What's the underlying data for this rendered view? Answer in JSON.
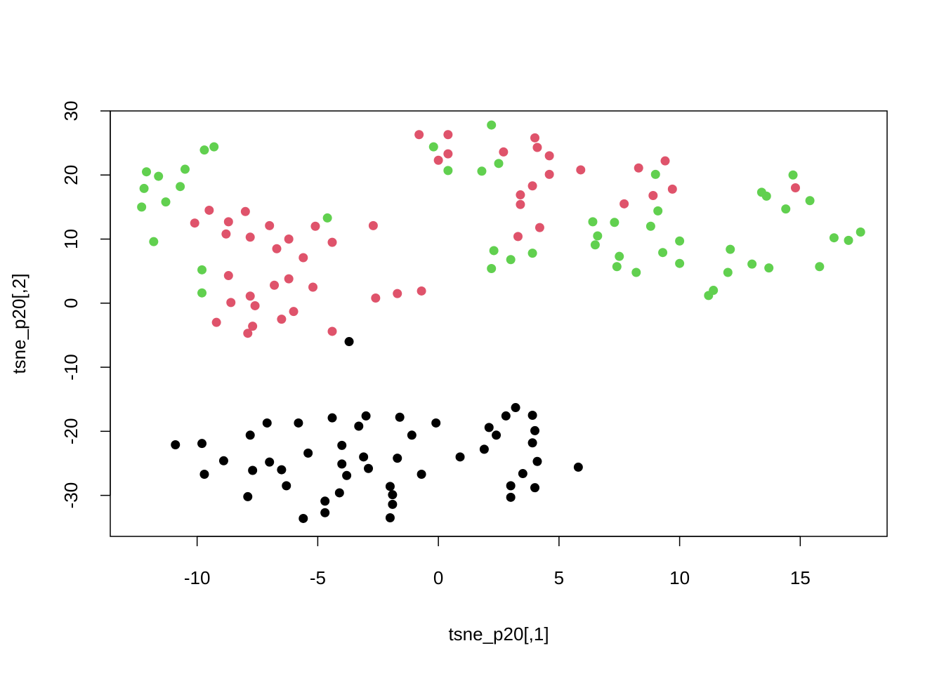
{
  "chart_data": {
    "type": "scatter",
    "xlabel": "tsne_p20[,1]",
    "ylabel": "tsne_p20[,2]",
    "xlim": [
      -13.6,
      18.6
    ],
    "ylim": [
      -36.4,
      30.0
    ],
    "xticks": [
      -10,
      -5,
      0,
      5,
      10,
      15
    ],
    "yticks": [
      -30,
      -20,
      -10,
      0,
      10,
      20,
      30
    ],
    "grid": false,
    "legend": "none",
    "series": [
      {
        "color": "#000000",
        "points": [
          [
            -3.7,
            -6.0
          ],
          [
            -10.9,
            -22.1
          ],
          [
            -9.8,
            -21.9
          ],
          [
            -9.7,
            -26.7
          ],
          [
            -8.9,
            -24.6
          ],
          [
            -7.9,
            -30.2
          ],
          [
            -7.8,
            -20.6
          ],
          [
            -7.7,
            -26.1
          ],
          [
            -7.1,
            -18.7
          ],
          [
            -7.0,
            -24.8
          ],
          [
            -6.5,
            -26.0
          ],
          [
            -6.3,
            -28.5
          ],
          [
            -5.8,
            -18.7
          ],
          [
            -5.6,
            -33.6
          ],
          [
            -5.4,
            -23.4
          ],
          [
            -4.7,
            -30.9
          ],
          [
            -4.7,
            -32.7
          ],
          [
            -4.4,
            -17.9
          ],
          [
            -4.1,
            -29.6
          ],
          [
            -4.0,
            -22.2
          ],
          [
            -4.0,
            -25.1
          ],
          [
            -3.8,
            -26.9
          ],
          [
            -3.3,
            -19.2
          ],
          [
            -3.1,
            -24.0
          ],
          [
            -3.0,
            -17.6
          ],
          [
            -2.9,
            -25.8
          ],
          [
            -2.0,
            -28.6
          ],
          [
            -2.0,
            -33.5
          ],
          [
            -1.9,
            -29.9
          ],
          [
            -1.9,
            -31.4
          ],
          [
            -1.7,
            -24.2
          ],
          [
            -1.6,
            -17.8
          ],
          [
            -1.1,
            -20.6
          ],
          [
            -0.7,
            -26.7
          ],
          [
            -0.1,
            -18.7
          ],
          [
            0.9,
            -24.0
          ],
          [
            1.9,
            -22.8
          ],
          [
            2.1,
            -19.4
          ],
          [
            2.4,
            -20.6
          ],
          [
            2.8,
            -17.6
          ],
          [
            3.0,
            -28.5
          ],
          [
            3.0,
            -30.3
          ],
          [
            3.2,
            -16.3
          ],
          [
            3.5,
            -26.6
          ],
          [
            3.9,
            -21.8
          ],
          [
            3.9,
            -17.5
          ],
          [
            4.0,
            -28.8
          ],
          [
            4.0,
            -19.9
          ],
          [
            4.1,
            -24.7
          ],
          [
            5.8,
            -25.6
          ]
        ]
      },
      {
        "color": "#DF536B",
        "points": [
          [
            -10.1,
            12.5
          ],
          [
            -9.5,
            14.5
          ],
          [
            -9.2,
            -3.0
          ],
          [
            -8.8,
            10.8
          ],
          [
            -8.7,
            12.7
          ],
          [
            -8.7,
            4.3
          ],
          [
            -8.6,
            0.1
          ],
          [
            -8.0,
            14.3
          ],
          [
            -7.9,
            -4.7
          ],
          [
            -7.8,
            10.3
          ],
          [
            -7.8,
            1.1
          ],
          [
            -7.7,
            -3.6
          ],
          [
            -7.6,
            -0.4
          ],
          [
            -7.0,
            12.1
          ],
          [
            -6.8,
            2.8
          ],
          [
            -6.7,
            8.5
          ],
          [
            -6.5,
            -2.5
          ],
          [
            -6.2,
            10.0
          ],
          [
            -6.2,
            3.8
          ],
          [
            -6.0,
            -1.3
          ],
          [
            -5.6,
            7.1
          ],
          [
            -5.2,
            2.5
          ],
          [
            -5.1,
            12.0
          ],
          [
            -4.4,
            9.5
          ],
          [
            -4.4,
            -4.4
          ],
          [
            -2.7,
            12.1
          ],
          [
            -2.6,
            0.8
          ],
          [
            -1.7,
            1.5
          ],
          [
            -0.8,
            26.3
          ],
          [
            -0.7,
            1.9
          ],
          [
            0.0,
            22.3
          ],
          [
            0.4,
            26.3
          ],
          [
            0.4,
            23.3
          ],
          [
            2.7,
            23.6
          ],
          [
            3.3,
            10.4
          ],
          [
            3.4,
            15.4
          ],
          [
            3.4,
            16.9
          ],
          [
            3.9,
            18.3
          ],
          [
            4.0,
            25.8
          ],
          [
            4.1,
            24.3
          ],
          [
            4.2,
            11.8
          ],
          [
            4.6,
            23.0
          ],
          [
            4.6,
            20.1
          ],
          [
            5.9,
            20.8
          ],
          [
            7.7,
            15.5
          ],
          [
            8.3,
            21.1
          ],
          [
            8.9,
            16.8
          ],
          [
            9.4,
            22.2
          ],
          [
            9.7,
            17.8
          ],
          [
            14.8,
            18.0
          ]
        ]
      },
      {
        "color": "#61D04F",
        "points": [
          [
            -12.3,
            15.0
          ],
          [
            -12.2,
            17.9
          ],
          [
            -12.1,
            20.5
          ],
          [
            -11.8,
            9.6
          ],
          [
            -11.6,
            19.8
          ],
          [
            -11.3,
            15.8
          ],
          [
            -10.7,
            18.2
          ],
          [
            -10.5,
            20.9
          ],
          [
            -9.8,
            5.2
          ],
          [
            -9.8,
            1.6
          ],
          [
            -9.7,
            23.9
          ],
          [
            -9.3,
            24.4
          ],
          [
            -4.6,
            13.3
          ],
          [
            -0.2,
            24.4
          ],
          [
            0.4,
            20.7
          ],
          [
            1.8,
            20.6
          ],
          [
            2.2,
            27.8
          ],
          [
            2.2,
            5.4
          ],
          [
            2.3,
            8.2
          ],
          [
            2.5,
            21.8
          ],
          [
            3.0,
            6.8
          ],
          [
            3.9,
            7.8
          ],
          [
            6.4,
            12.7
          ],
          [
            6.5,
            9.1
          ],
          [
            6.6,
            10.5
          ],
          [
            7.3,
            12.6
          ],
          [
            7.4,
            5.7
          ],
          [
            7.5,
            7.3
          ],
          [
            8.2,
            4.8
          ],
          [
            8.8,
            12.0
          ],
          [
            9.0,
            20.1
          ],
          [
            9.1,
            14.4
          ],
          [
            9.3,
            7.9
          ],
          [
            10.0,
            6.2
          ],
          [
            10.0,
            9.7
          ],
          [
            11.2,
            1.2
          ],
          [
            11.4,
            2.0
          ],
          [
            12.0,
            4.8
          ],
          [
            12.1,
            8.4
          ],
          [
            13.0,
            6.1
          ],
          [
            13.4,
            17.3
          ],
          [
            13.6,
            16.7
          ],
          [
            13.7,
            5.5
          ],
          [
            14.4,
            14.7
          ],
          [
            14.7,
            20.0
          ],
          [
            15.4,
            16.0
          ],
          [
            15.8,
            5.7
          ],
          [
            16.4,
            10.2
          ],
          [
            17.0,
            9.8
          ],
          [
            17.5,
            11.1
          ]
        ]
      }
    ]
  }
}
